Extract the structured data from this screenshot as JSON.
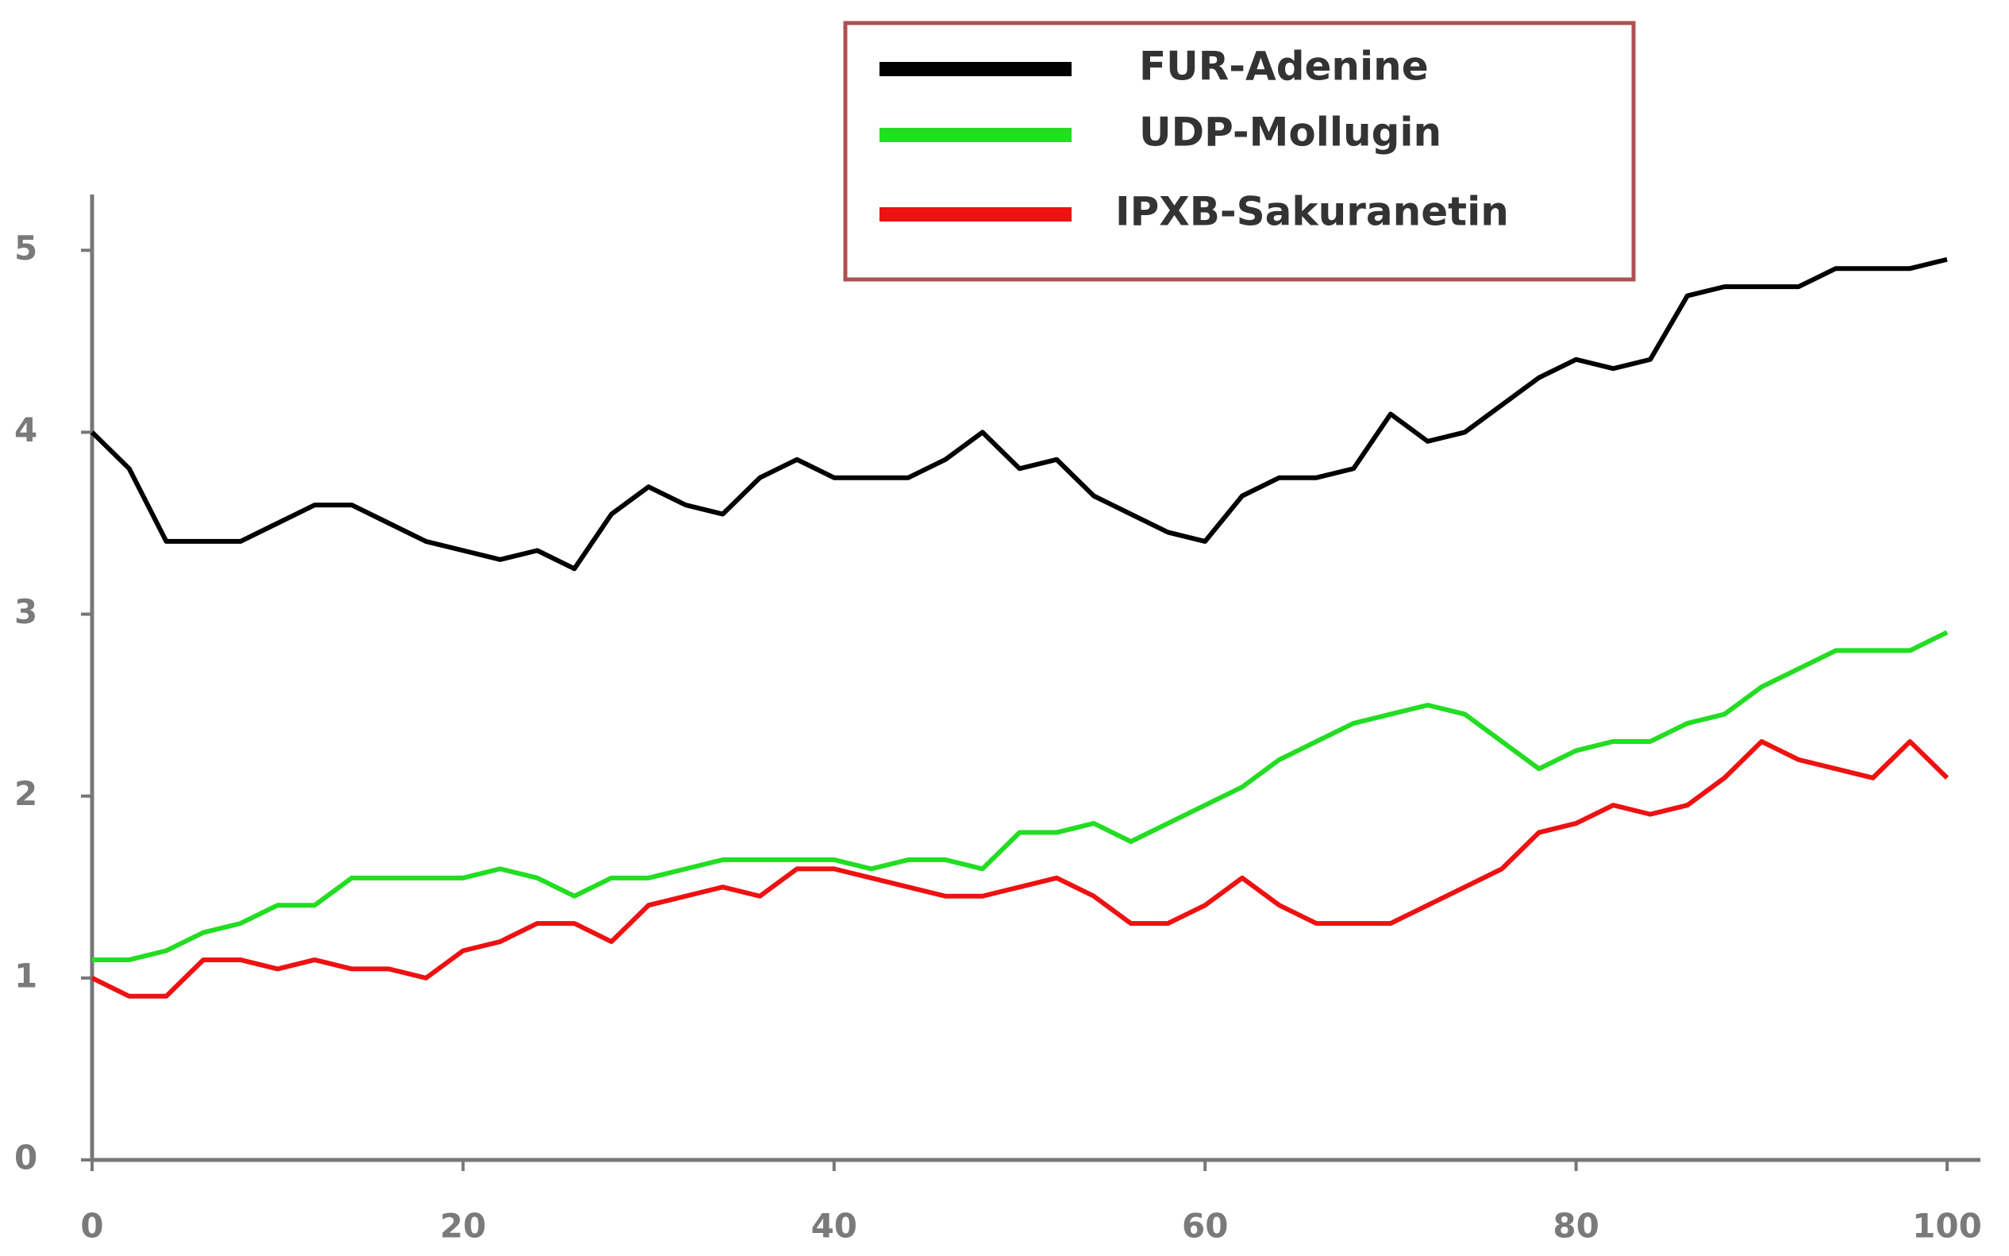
{
  "chart_data": {
    "type": "line",
    "x": [
      0,
      2,
      4,
      6,
      8,
      10,
      12,
      14,
      16,
      18,
      20,
      22,
      24,
      26,
      28,
      30,
      32,
      34,
      36,
      38,
      40,
      42,
      44,
      46,
      48,
      50,
      52,
      54,
      56,
      58,
      60,
      62,
      64,
      66,
      68,
      70,
      72,
      74,
      76,
      78,
      80,
      82,
      84,
      86,
      88,
      90,
      92,
      94,
      96,
      98,
      100
    ],
    "series": [
      {
        "name": "FUR-Adenine",
        "color": "#000000",
        "values": [
          4.0,
          3.8,
          3.4,
          3.4,
          3.4,
          3.5,
          3.6,
          3.6,
          3.5,
          3.4,
          3.35,
          3.3,
          3.35,
          3.25,
          3.55,
          3.7,
          3.6,
          3.55,
          3.75,
          3.85,
          3.75,
          3.75,
          3.75,
          3.85,
          4.0,
          3.8,
          3.85,
          3.65,
          3.55,
          3.45,
          3.4,
          3.65,
          3.75,
          3.75,
          3.8,
          4.1,
          3.95,
          4.0,
          4.15,
          4.3,
          4.4,
          4.35,
          4.4,
          4.75,
          4.8,
          4.8,
          4.8,
          4.9,
          4.9,
          4.9,
          4.95
        ]
      },
      {
        "name": "UDP-Mollugin",
        "color": "#22dd22",
        "values": [
          1.1,
          1.1,
          1.15,
          1.25,
          1.3,
          1.4,
          1.4,
          1.55,
          1.55,
          1.55,
          1.55,
          1.6,
          1.55,
          1.45,
          1.55,
          1.55,
          1.6,
          1.65,
          1.65,
          1.65,
          1.65,
          1.6,
          1.65,
          1.65,
          1.6,
          1.8,
          1.8,
          1.85,
          1.75,
          1.85,
          1.95,
          2.05,
          2.2,
          2.3,
          2.4,
          2.45,
          2.5,
          2.45,
          2.3,
          2.15,
          2.25,
          2.3,
          2.3,
          2.4,
          2.45,
          2.6,
          2.7,
          2.8,
          2.8,
          2.8,
          2.9
        ]
      },
      {
        "name": "IPXB-Sakuranetin",
        "color": "#ee1111",
        "values": [
          1.0,
          0.9,
          0.9,
          1.1,
          1.1,
          1.05,
          1.1,
          1.05,
          1.05,
          1.0,
          1.15,
          1.2,
          1.3,
          1.3,
          1.2,
          1.4,
          1.45,
          1.5,
          1.45,
          1.6,
          1.6,
          1.55,
          1.5,
          1.45,
          1.45,
          1.5,
          1.55,
          1.45,
          1.3,
          1.3,
          1.4,
          1.55,
          1.4,
          1.3,
          1.3,
          1.3,
          1.4,
          1.5,
          1.6,
          1.8,
          1.85,
          1.95,
          1.9,
          1.95,
          2.1,
          2.3,
          2.2,
          2.15,
          2.1,
          2.3,
          2.1
        ]
      }
    ],
    "xlim": [
      0,
      100
    ],
    "xticks": [
      0,
      20,
      40,
      60,
      80,
      100
    ],
    "ylim": [
      0,
      5.25
    ],
    "yticks": [
      0,
      1,
      2,
      3,
      4,
      5
    ]
  }
}
